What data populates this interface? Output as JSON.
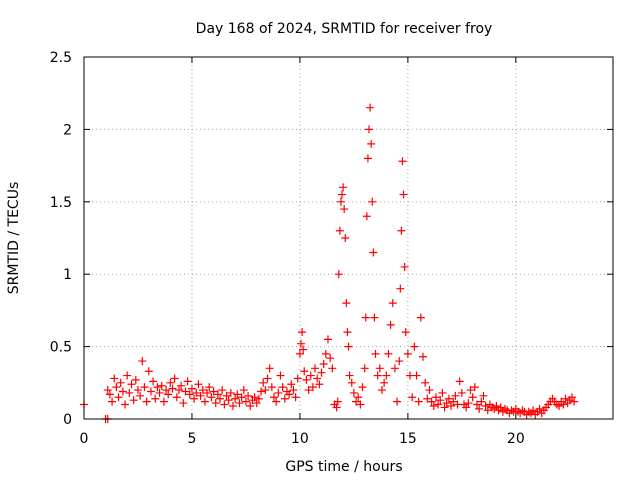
{
  "chart_data": {
    "type": "scatter",
    "title": "Day 168 of 2024, SRMTID for receiver froy",
    "xlabel": "GPS time / hours",
    "ylabel": "SRMTID / TECUs",
    "xlim": [
      0,
      24.5
    ],
    "ylim": [
      0,
      2.5
    ],
    "xticks": [
      0,
      5,
      10,
      15,
      20
    ],
    "yticks": [
      0,
      0.5,
      1,
      1.5,
      2,
      2.5
    ],
    "ytick_labels": [
      "0",
      "0.5",
      "1",
      "1.5",
      "2",
      "2.5"
    ],
    "grid": true,
    "marker": "plus",
    "series": [
      {
        "name": "SRMTID",
        "color": "#ff0000",
        "points": [
          [
            0.0,
            0.1
          ],
          [
            1.0,
            0.0
          ],
          [
            1.1,
            0.0
          ],
          [
            1.1,
            0.2
          ],
          [
            1.2,
            0.17
          ],
          [
            1.3,
            0.12
          ],
          [
            1.4,
            0.28
          ],
          [
            1.5,
            0.22
          ],
          [
            1.6,
            0.15
          ],
          [
            1.7,
            0.25
          ],
          [
            1.8,
            0.19
          ],
          [
            1.9,
            0.1
          ],
          [
            2.0,
            0.3
          ],
          [
            2.1,
            0.18
          ],
          [
            2.2,
            0.24
          ],
          [
            2.3,
            0.13
          ],
          [
            2.4,
            0.27
          ],
          [
            2.5,
            0.2
          ],
          [
            2.6,
            0.16
          ],
          [
            2.7,
            0.4
          ],
          [
            2.8,
            0.22
          ],
          [
            2.9,
            0.12
          ],
          [
            3.0,
            0.33
          ],
          [
            3.1,
            0.19
          ],
          [
            3.2,
            0.26
          ],
          [
            3.3,
            0.14
          ],
          [
            3.4,
            0.22
          ],
          [
            3.5,
            0.18
          ],
          [
            3.6,
            0.23
          ],
          [
            3.7,
            0.12
          ],
          [
            3.8,
            0.2
          ],
          [
            3.9,
            0.17
          ],
          [
            4.0,
            0.25
          ],
          [
            4.1,
            0.21
          ],
          [
            4.2,
            0.28
          ],
          [
            4.3,
            0.15
          ],
          [
            4.4,
            0.2
          ],
          [
            4.5,
            0.23
          ],
          [
            4.6,
            0.11
          ],
          [
            4.7,
            0.19
          ],
          [
            4.8,
            0.26
          ],
          [
            4.9,
            0.17
          ],
          [
            5.0,
            0.21
          ],
          [
            5.1,
            0.14
          ],
          [
            5.2,
            0.18
          ],
          [
            5.3,
            0.24
          ],
          [
            5.4,
            0.16
          ],
          [
            5.5,
            0.2
          ],
          [
            5.6,
            0.12
          ],
          [
            5.7,
            0.18
          ],
          [
            5.8,
            0.22
          ],
          [
            5.9,
            0.15
          ],
          [
            6.0,
            0.19
          ],
          [
            6.1,
            0.11
          ],
          [
            6.2,
            0.17
          ],
          [
            6.3,
            0.14
          ],
          [
            6.4,
            0.2
          ],
          [
            6.5,
            0.1
          ],
          [
            6.6,
            0.16
          ],
          [
            6.7,
            0.13
          ],
          [
            6.8,
            0.18
          ],
          [
            6.9,
            0.09
          ],
          [
            7.0,
            0.14
          ],
          [
            7.1,
            0.17
          ],
          [
            7.2,
            0.11
          ],
          [
            7.3,
            0.15
          ],
          [
            7.4,
            0.2
          ],
          [
            7.5,
            0.12
          ],
          [
            7.6,
            0.16
          ],
          [
            7.7,
            0.09
          ],
          [
            7.8,
            0.13
          ],
          [
            7.9,
            0.15
          ],
          [
            8.0,
            0.11
          ],
          [
            8.1,
            0.14
          ],
          [
            8.2,
            0.19
          ],
          [
            8.3,
            0.25
          ],
          [
            8.4,
            0.2
          ],
          [
            8.5,
            0.28
          ],
          [
            8.6,
            0.35
          ],
          [
            8.7,
            0.22
          ],
          [
            8.8,
            0.15
          ],
          [
            8.9,
            0.12
          ],
          [
            9.0,
            0.18
          ],
          [
            9.1,
            0.3
          ],
          [
            9.2,
            0.22
          ],
          [
            9.3,
            0.14
          ],
          [
            9.4,
            0.19
          ],
          [
            9.5,
            0.17
          ],
          [
            9.6,
            0.24
          ],
          [
            9.7,
            0.2
          ],
          [
            9.8,
            0.15
          ],
          [
            9.9,
            0.28
          ],
          [
            10.0,
            0.45
          ],
          [
            10.05,
            0.52
          ],
          [
            10.1,
            0.6
          ],
          [
            10.15,
            0.48
          ],
          [
            10.2,
            0.33
          ],
          [
            10.3,
            0.27
          ],
          [
            10.4,
            0.2
          ],
          [
            10.5,
            0.3
          ],
          [
            10.6,
            0.22
          ],
          [
            10.7,
            0.35
          ],
          [
            10.8,
            0.28
          ],
          [
            10.9,
            0.24
          ],
          [
            11.0,
            0.32
          ],
          [
            11.1,
            0.38
          ],
          [
            11.2,
            0.45
          ],
          [
            11.3,
            0.55
          ],
          [
            11.4,
            0.42
          ],
          [
            11.5,
            0.35
          ],
          [
            11.6,
            0.1
          ],
          [
            11.7,
            0.08
          ],
          [
            11.75,
            0.12
          ],
          [
            11.8,
            1.0
          ],
          [
            11.85,
            1.3
          ],
          [
            11.9,
            1.5
          ],
          [
            11.95,
            1.55
          ],
          [
            12.0,
            1.6
          ],
          [
            12.05,
            1.45
          ],
          [
            12.1,
            1.25
          ],
          [
            12.15,
            0.8
          ],
          [
            12.2,
            0.6
          ],
          [
            12.25,
            0.5
          ],
          [
            12.3,
            0.3
          ],
          [
            12.4,
            0.25
          ],
          [
            12.5,
            0.18
          ],
          [
            12.6,
            0.12
          ],
          [
            12.7,
            0.15
          ],
          [
            12.8,
            0.1
          ],
          [
            12.9,
            0.22
          ],
          [
            13.0,
            0.35
          ],
          [
            13.05,
            0.7
          ],
          [
            13.1,
            1.4
          ],
          [
            13.15,
            1.8
          ],
          [
            13.2,
            2.0
          ],
          [
            13.25,
            2.15
          ],
          [
            13.3,
            1.9
          ],
          [
            13.35,
            1.5
          ],
          [
            13.4,
            1.15
          ],
          [
            13.45,
            0.7
          ],
          [
            13.5,
            0.45
          ],
          [
            13.6,
            0.3
          ],
          [
            13.7,
            0.35
          ],
          [
            13.8,
            0.2
          ],
          [
            13.9,
            0.25
          ],
          [
            14.0,
            0.3
          ],
          [
            14.1,
            0.45
          ],
          [
            14.2,
            0.65
          ],
          [
            14.3,
            0.8
          ],
          [
            14.4,
            0.35
          ],
          [
            14.5,
            0.12
          ],
          [
            14.6,
            0.4
          ],
          [
            14.65,
            0.9
          ],
          [
            14.7,
            1.3
          ],
          [
            14.75,
            1.78
          ],
          [
            14.8,
            1.55
          ],
          [
            14.85,
            1.05
          ],
          [
            14.9,
            0.6
          ],
          [
            15.0,
            0.45
          ],
          [
            15.1,
            0.3
          ],
          [
            15.2,
            0.15
          ],
          [
            15.3,
            0.5
          ],
          [
            15.4,
            0.3
          ],
          [
            15.5,
            0.12
          ],
          [
            15.6,
            0.7
          ],
          [
            15.7,
            0.43
          ],
          [
            15.8,
            0.25
          ],
          [
            15.9,
            0.14
          ],
          [
            16.0,
            0.2
          ],
          [
            16.1,
            0.12
          ],
          [
            16.2,
            0.09
          ],
          [
            16.3,
            0.15
          ],
          [
            16.4,
            0.1
          ],
          [
            16.5,
            0.13
          ],
          [
            16.6,
            0.18
          ],
          [
            16.7,
            0.08
          ],
          [
            16.8,
            0.11
          ],
          [
            16.9,
            0.14
          ],
          [
            17.0,
            0.09
          ],
          [
            17.1,
            0.12
          ],
          [
            17.2,
            0.16
          ],
          [
            17.3,
            0.1
          ],
          [
            17.4,
            0.26
          ],
          [
            17.5,
            0.18
          ],
          [
            17.6,
            0.1
          ],
          [
            17.7,
            0.08
          ],
          [
            17.8,
            0.11
          ],
          [
            17.9,
            0.2
          ],
          [
            18.0,
            0.15
          ],
          [
            18.1,
            0.22
          ],
          [
            18.2,
            0.1
          ],
          [
            18.3,
            0.07
          ],
          [
            18.4,
            0.12
          ],
          [
            18.5,
            0.16
          ],
          [
            18.6,
            0.09
          ],
          [
            18.7,
            0.06
          ],
          [
            18.8,
            0.1
          ],
          [
            18.9,
            0.08
          ],
          [
            19.0,
            0.07
          ],
          [
            19.1,
            0.09
          ],
          [
            19.2,
            0.06
          ],
          [
            19.3,
            0.08
          ],
          [
            19.4,
            0.05
          ],
          [
            19.5,
            0.07
          ],
          [
            19.6,
            0.06
          ],
          [
            19.7,
            0.04
          ],
          [
            19.8,
            0.06
          ],
          [
            19.9,
            0.05
          ],
          [
            20.0,
            0.07
          ],
          [
            20.1,
            0.05
          ],
          [
            20.2,
            0.04
          ],
          [
            20.3,
            0.06
          ],
          [
            20.4,
            0.05
          ],
          [
            20.5,
            0.03
          ],
          [
            20.6,
            0.05
          ],
          [
            20.7,
            0.04
          ],
          [
            20.8,
            0.06
          ],
          [
            20.9,
            0.03
          ],
          [
            21.0,
            0.05
          ],
          [
            21.1,
            0.07
          ],
          [
            21.2,
            0.04
          ],
          [
            21.3,
            0.06
          ],
          [
            21.4,
            0.08
          ],
          [
            21.5,
            0.1
          ],
          [
            21.6,
            0.12
          ],
          [
            21.7,
            0.14
          ],
          [
            21.8,
            0.12
          ],
          [
            21.9,
            0.1
          ],
          [
            22.0,
            0.09
          ],
          [
            22.1,
            0.12
          ],
          [
            22.2,
            0.1
          ],
          [
            22.3,
            0.14
          ],
          [
            22.4,
            0.11
          ],
          [
            22.5,
            0.13
          ],
          [
            22.6,
            0.15
          ],
          [
            22.7,
            0.12
          ]
        ]
      }
    ]
  }
}
